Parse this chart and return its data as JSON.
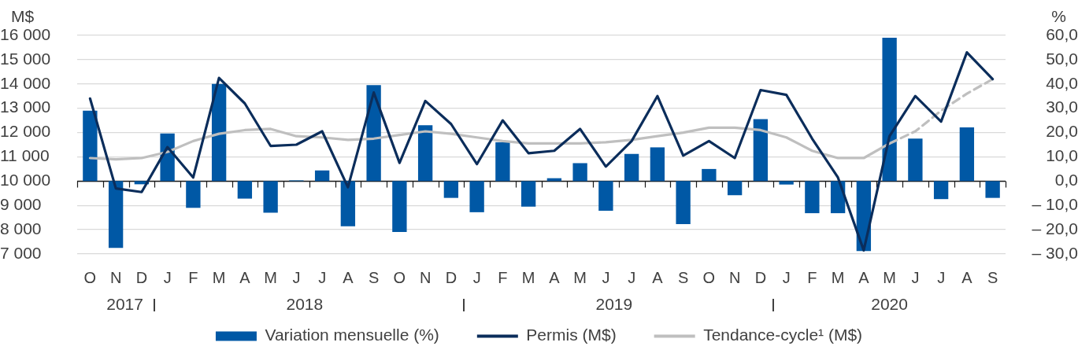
{
  "chart_data": {
    "type": "bar",
    "categories": [
      "O",
      "N",
      "D",
      "J",
      "F",
      "M",
      "A",
      "M",
      "J",
      "J",
      "A",
      "S",
      "O",
      "N",
      "D",
      "J",
      "F",
      "M",
      "A",
      "M",
      "J",
      "J",
      "A",
      "S",
      "O",
      "N",
      "D",
      "J",
      "F",
      "M",
      "A",
      "M",
      "J",
      "J",
      "A",
      "S"
    ],
    "ylabel": "M$",
    "y2label": "%",
    "ylim": [
      7000,
      16000
    ],
    "yticks": [
      {
        "value": 7000,
        "label": "7 000"
      },
      {
        "value": 8000,
        "label": "8 000"
      },
      {
        "value": 9000,
        "label": "9 000"
      },
      {
        "value": 10000,
        "label": "10 000"
      },
      {
        "value": 11000,
        "label": "11 000"
      },
      {
        "value": 12000,
        "label": "12 000"
      },
      {
        "value": 13000,
        "label": "13 000"
      },
      {
        "value": 14000,
        "label": "14 000"
      },
      {
        "value": 15000,
        "label": "15 000"
      },
      {
        "value": 16000,
        "label": "16 000"
      }
    ],
    "y2lim": [
      -30,
      60
    ],
    "y2ticks": [
      {
        "value": -30,
        "label": "– 30,0"
      },
      {
        "value": -20,
        "label": "– 20,0"
      },
      {
        "value": -10,
        "label": "– 10,0"
      },
      {
        "value": 0,
        "label": "0,0"
      },
      {
        "value": 10,
        "label": "10,0"
      },
      {
        "value": 20,
        "label": "20,0"
      },
      {
        "value": 30,
        "label": "30,0"
      },
      {
        "value": 40,
        "label": "40,0"
      },
      {
        "value": 50,
        "label": "50,0"
      },
      {
        "value": 60,
        "label": "60,0"
      }
    ],
    "grid": "y",
    "legend": "bottom",
    "series": [
      {
        "name": "Variation mensuelle (%)",
        "axis": "y2",
        "color": "#0058a5",
        "values": [
          29,
          -27.5,
          -1.3,
          19.6,
          -11,
          40,
          -7.2,
          -13,
          0.3,
          4.4,
          -18.6,
          39.5,
          -20.9,
          23,
          -6.9,
          -12.8,
          16,
          -10.5,
          1.2,
          7.4,
          -12.2,
          11.2,
          13.9,
          -17.7,
          5,
          -5.8,
          25.5,
          -1.4,
          -13.2,
          -13.2,
          -28.8,
          59,
          17.5,
          -7.4,
          22.1,
          -6.9
        ]
      },
      {
        "name": "Permis (M$)",
        "type": "line",
        "color": "#0b2d5b",
        "values": [
          13400,
          9700,
          9550,
          11400,
          10150,
          14250,
          13200,
          11450,
          11500,
          12050,
          9750,
          13650,
          10750,
          13300,
          12350,
          10700,
          12500,
          11150,
          11250,
          12150,
          10600,
          11650,
          13500,
          11050,
          11650,
          10950,
          13750,
          13550,
          11750,
          10150,
          7150,
          11850,
          13500,
          12450,
          15300,
          14200
        ]
      },
      {
        "name": "Tendance-cycle¹ (M$)",
        "type": "line",
        "color": "#bfbfbf",
        "values": [
          10950,
          10900,
          10950,
          11200,
          11650,
          11950,
          12100,
          12150,
          11850,
          11800,
          11700,
          11750,
          11900,
          12050,
          11950,
          11800,
          11650,
          11550,
          11550,
          11550,
          11600,
          11700,
          11850,
          12000,
          12200,
          12200,
          12100,
          11800,
          11250,
          10950,
          10950,
          11550,
          null,
          null,
          null,
          null
        ]
      },
      {
        "type": "line",
        "color": "#bfbfbf",
        "line_style": "dashed",
        "values": [
          null,
          null,
          null,
          null,
          null,
          null,
          null,
          null,
          null,
          null,
          null,
          null,
          null,
          null,
          null,
          null,
          null,
          null,
          null,
          null,
          null,
          null,
          null,
          null,
          null,
          null,
          null,
          null,
          null,
          null,
          null,
          11550,
          12050,
          12900,
          13600,
          14200
        ]
      }
    ],
    "annotations": [
      "2017",
      "2018",
      "2019",
      "2020"
    ]
  }
}
